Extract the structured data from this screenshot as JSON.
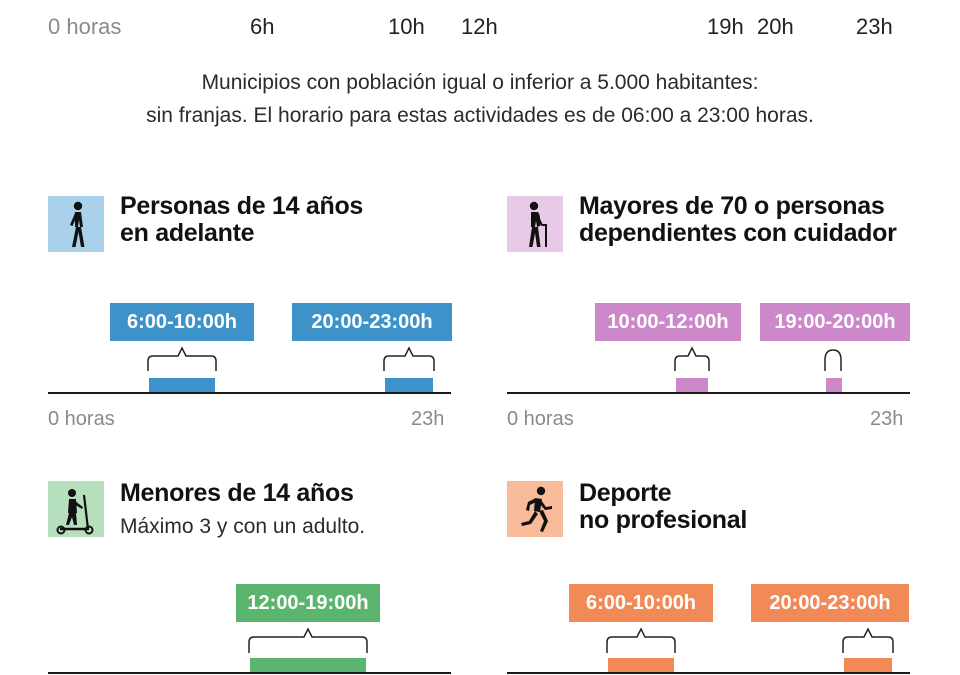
{
  "top_axis": {
    "labels": [
      "0 horas",
      "6h",
      "10h",
      "12h",
      "19h",
      "20h",
      "23h"
    ]
  },
  "note": {
    "line1": "Municipios con población igual o inferior a 5.000 habitantes:",
    "line2": "sin franjas. El horario para estas actividades es de 06:00 a 23:00 horas."
  },
  "panels": [
    {
      "title_line1": "Personas de 14 años",
      "title_line2": "en adelante",
      "subtitle": "",
      "icon": "walking-person-icon",
      "color": "#3d93c9",
      "icon_bg": "#a9d1ec",
      "slots": [
        {
          "label": "6:00-10:00h",
          "start_hour": 6,
          "end_hour": 10
        },
        {
          "label": "20:00-23:00h",
          "start_hour": 20,
          "end_hour": 23
        }
      ],
      "axis_start": "0 horas",
      "axis_end": "23h"
    },
    {
      "title_line1": "Mayores de 70 o personas",
      "title_line2": "dependientes con cuidador",
      "subtitle": "",
      "icon": "elderly-with-cane-icon",
      "color": "#cc88c9",
      "icon_bg": "#e9c9e8",
      "slots": [
        {
          "label": "10:00-12:00h",
          "start_hour": 10,
          "end_hour": 12
        },
        {
          "label": "19:00-20:00h",
          "start_hour": 19,
          "end_hour": 20
        }
      ],
      "axis_start": "0 horas",
      "axis_end": "23h"
    },
    {
      "title_line1": "Menores de 14 años",
      "title_line2": "",
      "subtitle": "Máximo 3 y con un adulto.",
      "icon": "child-scooter-icon",
      "color": "#5bb56e",
      "icon_bg": "#b6dfbd",
      "slots": [
        {
          "label": "12:00-19:00h",
          "start_hour": 12,
          "end_hour": 19
        }
      ],
      "axis_start": "",
      "axis_end": ""
    },
    {
      "title_line1": "Deporte",
      "title_line2": "no profesional",
      "subtitle": "",
      "icon": "running-person-icon",
      "color": "#f28a57",
      "icon_bg": "#f8bb99",
      "slots": [
        {
          "label": "6:00-10:00h",
          "start_hour": 6,
          "end_hour": 10
        },
        {
          "label": "20:00-23:00h",
          "start_hour": 20,
          "end_hour": 23
        }
      ],
      "axis_start": "",
      "axis_end": ""
    }
  ]
}
